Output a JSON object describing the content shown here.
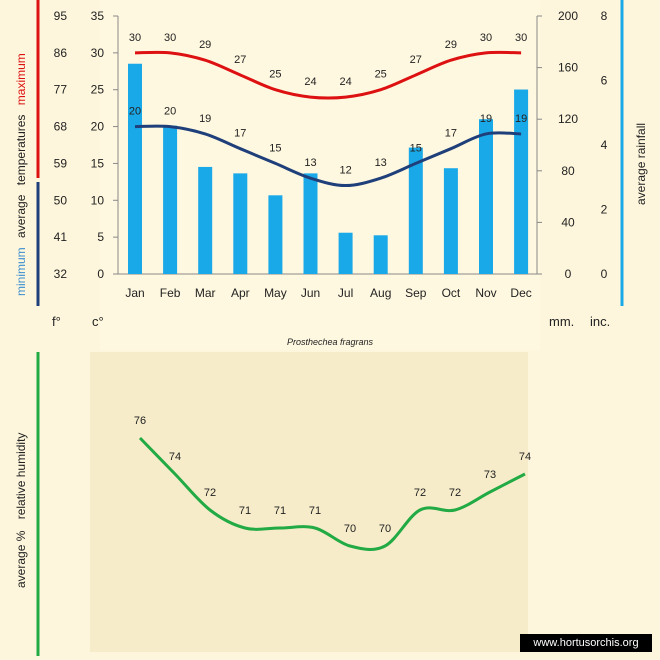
{
  "species": "Prosthechea fragrans",
  "watermark": "www.hortusorchis.org",
  "labels": {
    "minimum": "minimum",
    "average": "average",
    "temperatures": "temperatures",
    "maximum": "maximum",
    "rainfall": "average rainfall",
    "humidity_left": "average %",
    "humidity_right": "relative humidity"
  },
  "units": {
    "fahrenheit": "f°",
    "celsius": "c°",
    "mm": "mm.",
    "inches": "inc."
  },
  "colors": {
    "max_line": "#dd1111",
    "min_line": "#1f3f7a",
    "rain_bar": "#1aa9e8",
    "humidity_line": "#22aa44",
    "rain_axis": "#1aa9e8",
    "humidity_axis": "#22aa44",
    "temp_axis_top": "#dd1111",
    "temp_axis_bottom": "#1f3f7a"
  },
  "chart_data": [
    {
      "type": "bar+line",
      "categories": [
        "Jan",
        "Feb",
        "Mar",
        "Apr",
        "May",
        "Jun",
        "Jul",
        "Aug",
        "Sep",
        "Oct",
        "Nov",
        "Dec"
      ],
      "celsius_ticks": [
        0,
        5,
        10,
        15,
        20,
        25,
        30,
        35
      ],
      "fahrenheit_ticks": [
        32,
        41,
        50,
        59,
        68,
        77,
        86,
        95
      ],
      "mm_ticks": [
        0,
        40,
        80,
        120,
        160,
        200
      ],
      "inch_ticks": [
        0,
        2,
        4,
        6,
        8
      ],
      "temp_range_c": [
        0,
        35
      ],
      "rain_range_mm": [
        0,
        200
      ],
      "series": [
        {
          "name": "maximum",
          "kind": "line",
          "values": [
            30,
            30,
            29,
            27,
            25,
            24,
            24,
            25,
            27,
            29,
            30,
            30
          ]
        },
        {
          "name": "minimum",
          "kind": "line",
          "values": [
            20,
            20,
            19,
            17,
            15,
            13,
            12,
            13,
            15,
            17,
            19,
            19
          ]
        },
        {
          "name": "average rainfall",
          "kind": "bar",
          "values": [
            163,
            115,
            83,
            78,
            61,
            78,
            32,
            30,
            98,
            82,
            120,
            143
          ]
        }
      ]
    },
    {
      "type": "line",
      "categories": [
        "Jan",
        "Feb",
        "Mar",
        "Apr",
        "May",
        "Jun",
        "Jul",
        "Aug",
        "Sep",
        "Oct",
        "Nov",
        "Dec"
      ],
      "series": [
        {
          "name": "average % relative humidity",
          "values": [
            76,
            74,
            72,
            71,
            71,
            71,
            70,
            70,
            72,
            72,
            73,
            74
          ]
        }
      ]
    }
  ]
}
